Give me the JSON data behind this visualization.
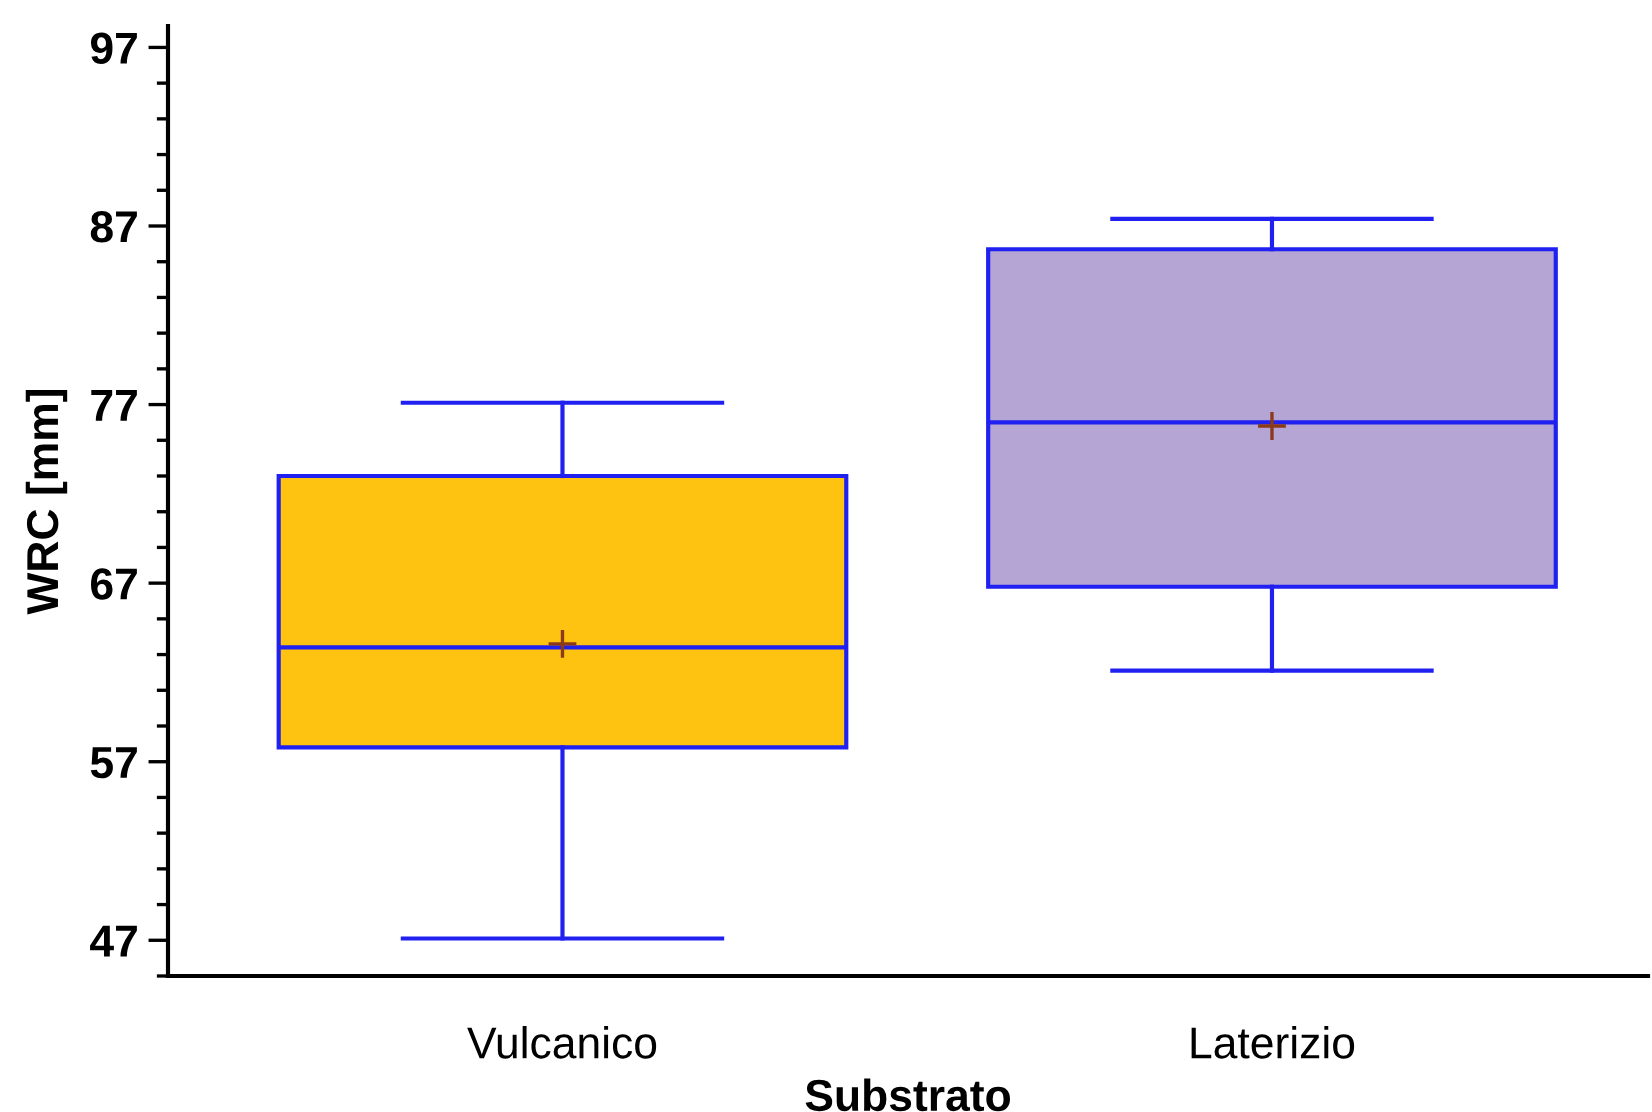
{
  "chart_data": {
    "type": "box",
    "xlabel": "Substrato",
    "ylabel": "WRC [mm]",
    "categories": [
      "Vulcanico",
      "Laterizio"
    ],
    "colors": [
      "#fec210",
      "#b4a5d4"
    ],
    "boxes": [
      {
        "low": 47.1,
        "q1": 57.8,
        "median": 63.4,
        "q3": 73.0,
        "high": 77.1,
        "mean": 63.6
      },
      {
        "low": 62.1,
        "q1": 66.8,
        "median": 76.0,
        "q3": 85.7,
        "high": 87.4,
        "mean": 75.8
      }
    ],
    "ylim": [
      45.2,
      98.2
    ],
    "yticks": [
      47,
      57,
      67,
      77,
      87,
      97
    ],
    "grid": false,
    "legend": false
  }
}
